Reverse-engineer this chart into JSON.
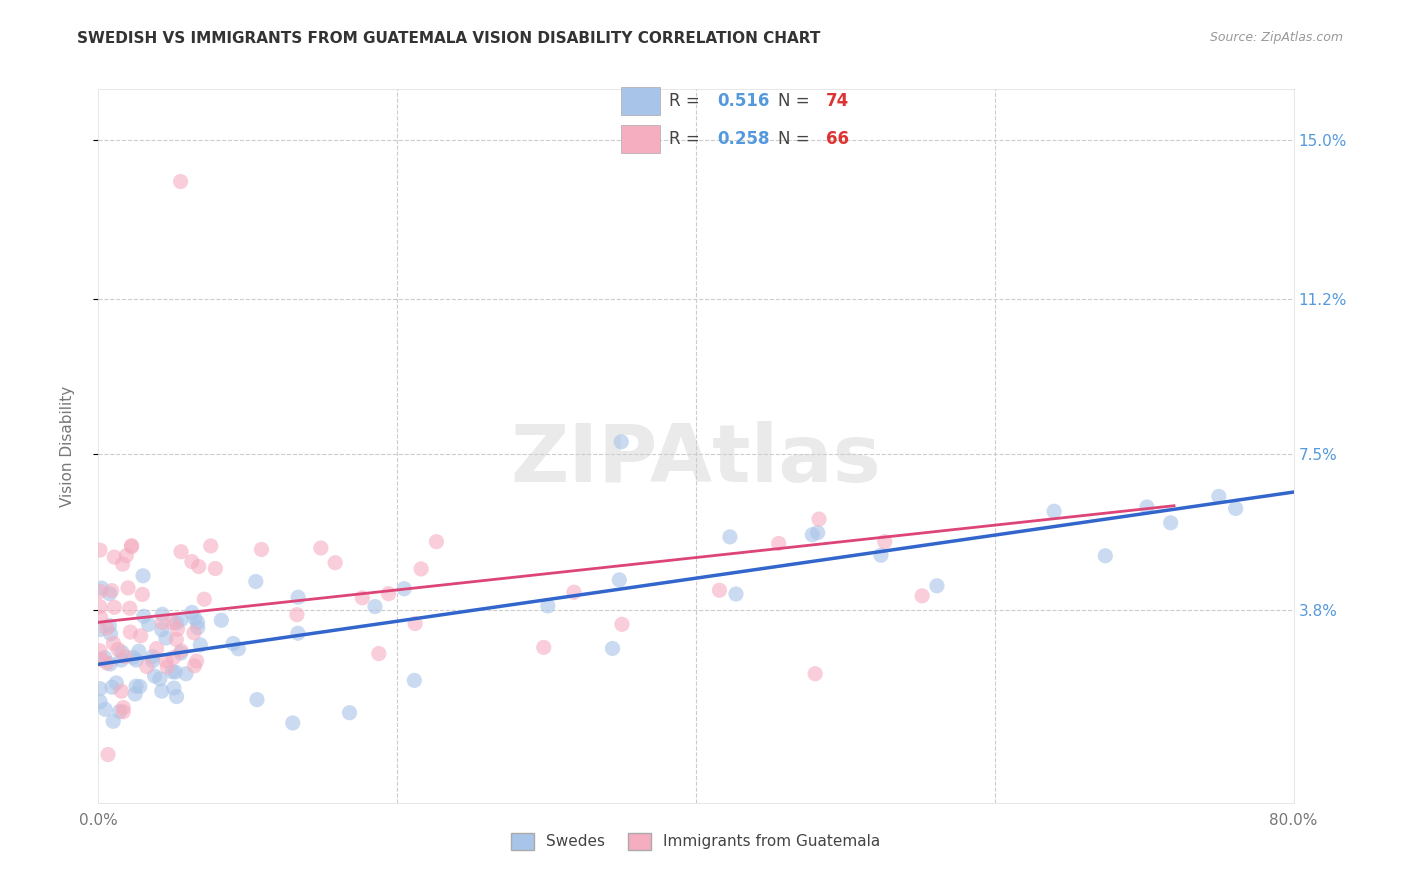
{
  "title": "SWEDISH VS IMMIGRANTS FROM GUATEMALA VISION DISABILITY CORRELATION CHART",
  "source": "Source: ZipAtlas.com",
  "ylabel": "Vision Disability",
  "xlim": [
    0.0,
    0.8
  ],
  "ylim": [
    -0.008,
    0.162
  ],
  "ytick_positions": [
    0.038,
    0.075,
    0.112,
    0.15
  ],
  "ytick_labels": [
    "3.8%",
    "7.5%",
    "11.2%",
    "15.0%"
  ],
  "xtick_positions": [
    0.0,
    0.2,
    0.4,
    0.6,
    0.8
  ],
  "xtick_labels": [
    "0.0%",
    "",
    "",
    "",
    "80.0%"
  ],
  "legend_R_swedes": "0.516",
  "legend_N_swedes": "74",
  "legend_R_immigrants": "0.258",
  "legend_N_immigrants": "66",
  "legend_label_swedes": "Swedes",
  "legend_label_immigrants": "Immigrants from Guatemala",
  "swedes_color": "#a8c4e8",
  "immigrants_color": "#f5adc0",
  "swedes_line_color": "#3366cc",
  "immigrants_line_color": "#dd4477",
  "watermark": "ZIPAtlas",
  "background_color": "#ffffff",
  "grid_color": "#cccccc",
  "title_color": "#333333",
  "source_color": "#999999",
  "ylabel_color": "#777777",
  "ytick_color": "#5599dd",
  "xtick_color": "#777777",
  "N_color": "#dd3333",
  "R_color": "#5599dd"
}
